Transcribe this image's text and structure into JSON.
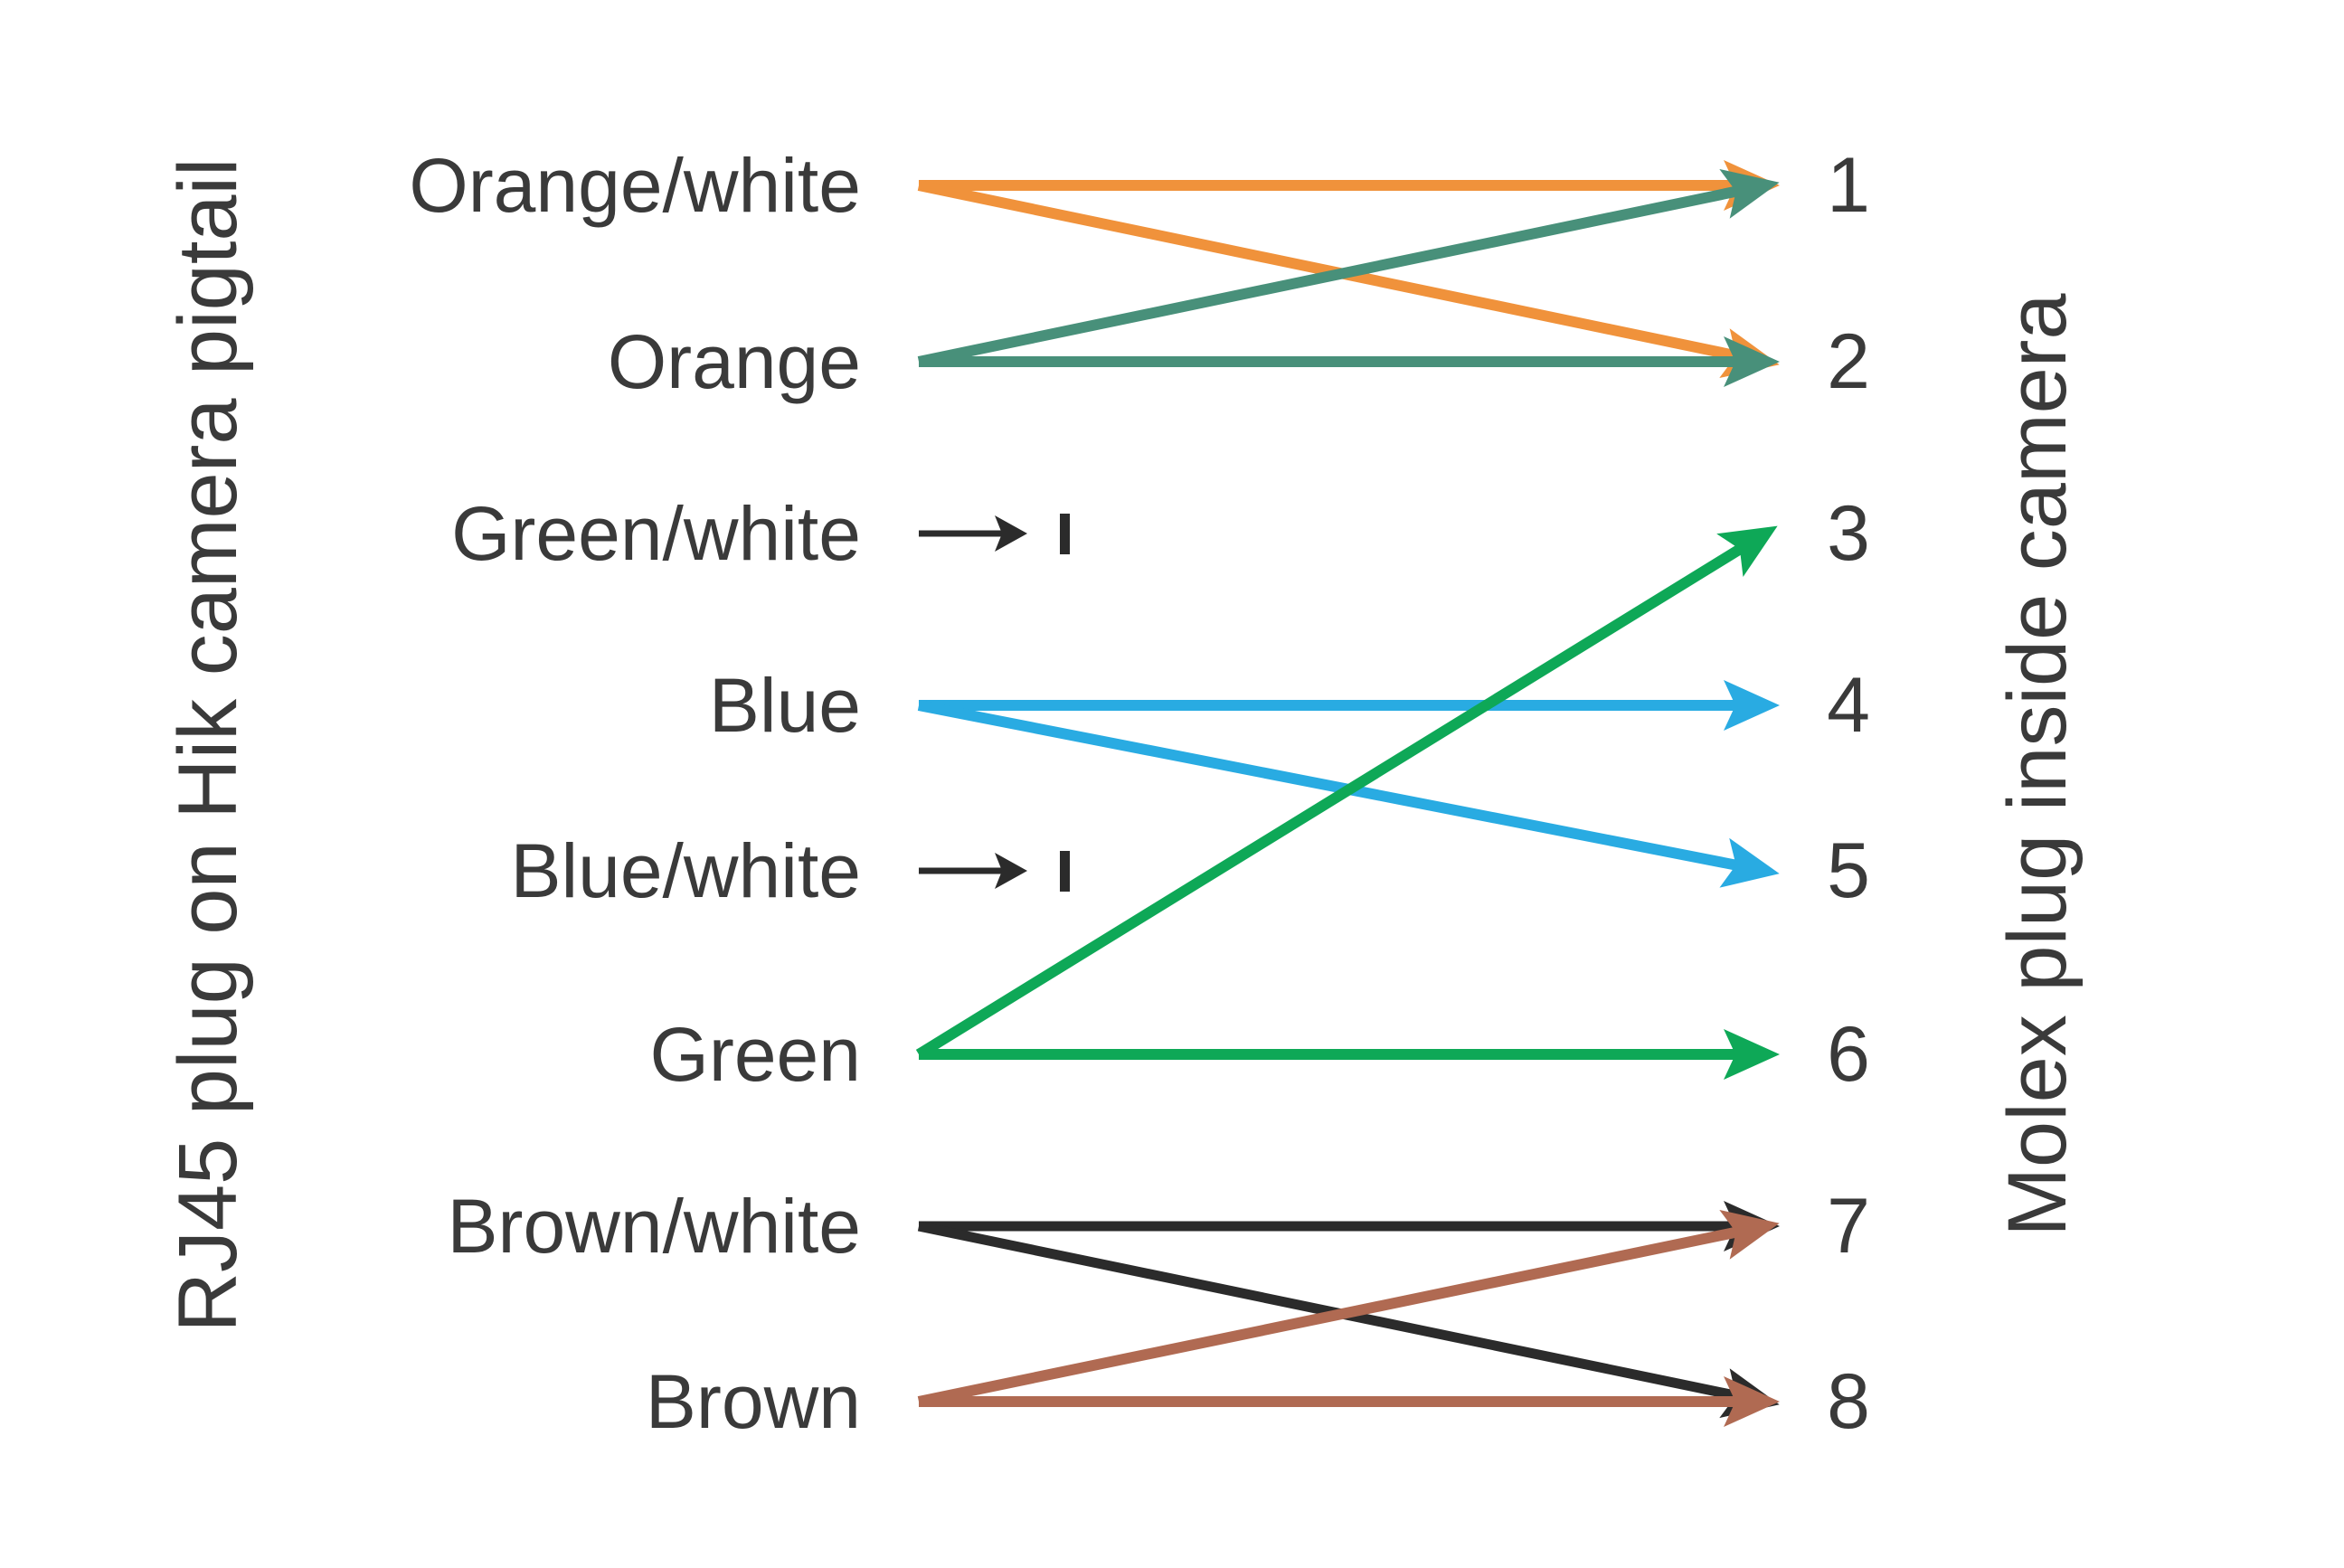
{
  "diagram": {
    "title_hint": "RJ45 to Molex pin wiring map",
    "left_axis_label": "RJ45 plug on Hik camera pigtail",
    "right_axis_label": "Molex plug inside camera",
    "background_color": "#FFFFFF",
    "text_color": "#3A3A3A",
    "colors": {
      "orange": "#F0923B",
      "teal": "#48907A",
      "blue": "#29ABE2",
      "green": "#0EA857",
      "black": "#2B2B2B",
      "brown": "#B06A52"
    },
    "rows": [
      {
        "label": "Orange/white",
        "pin": "1"
      },
      {
        "label": "Orange",
        "pin": "2"
      },
      {
        "label": "Green/white",
        "pin": "3"
      },
      {
        "label": "Blue",
        "pin": "4"
      },
      {
        "label": "Blue/white",
        "pin": "5"
      },
      {
        "label": "Green",
        "pin": "6"
      },
      {
        "label": "Brown/white",
        "pin": "7"
      },
      {
        "label": "Brown",
        "pin": "8"
      }
    ],
    "connections": [
      {
        "from": "Orange/white",
        "to": "1",
        "color": "orange"
      },
      {
        "from": "Orange/white",
        "to": "2",
        "color": "orange"
      },
      {
        "from": "Orange",
        "to": "1",
        "color": "teal"
      },
      {
        "from": "Orange",
        "to": "2",
        "color": "teal"
      },
      {
        "from": "Blue",
        "to": "4",
        "color": "blue"
      },
      {
        "from": "Blue",
        "to": "5",
        "color": "blue"
      },
      {
        "from": "Green",
        "to": "3",
        "color": "green"
      },
      {
        "from": "Green",
        "to": "6",
        "color": "green"
      },
      {
        "from": "Green/white",
        "to": null,
        "color": "black",
        "terminated": true
      },
      {
        "from": "Blue/white",
        "to": null,
        "color": "black",
        "terminated": true
      },
      {
        "from": "Brown/white",
        "to": "7",
        "color": "black"
      },
      {
        "from": "Brown/white",
        "to": "8",
        "color": "black"
      },
      {
        "from": "Brown",
        "to": "7",
        "color": "brown"
      },
      {
        "from": "Brown",
        "to": "8",
        "color": "brown"
      }
    ]
  }
}
